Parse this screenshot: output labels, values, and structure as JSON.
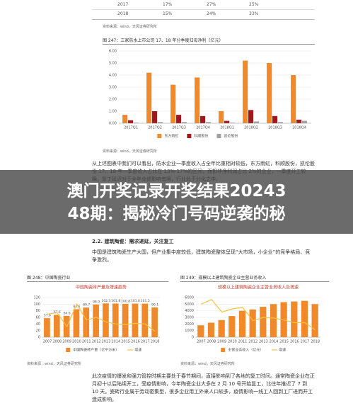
{
  "table": {
    "rows": [
      [
        "2017",
        "17%",
        "27%",
        "25%"
      ],
      [
        "2018",
        "15%",
        "24%",
        "33%"
      ]
    ],
    "source": "资料来源：wind，天风证券研究所"
  },
  "figure_247": {
    "label": "图 247：三家防水上市公司 17、18 年分季度归母净利（亿元）",
    "chart": {
      "type": "bar",
      "categories": [
        "2017Q1",
        "2017Q2",
        "2017Q3",
        "2017Q4",
        "2018Q1",
        "2018Q2",
        "2018Q3",
        "2018Q4"
      ],
      "series": [
        {
          "name": "东方雨虹",
          "color": "#f0892a",
          "values": [
            0.7,
            4.2,
            3.2,
            3.8,
            1.0,
            5.2,
            5.0,
            4.0
          ]
        },
        {
          "name": "科顺股份",
          "color": "#a3161d",
          "values": [
            0.25,
            1.0,
            0.7,
            0.6,
            0.2,
            1.1,
            0.6,
            0.3
          ]
        },
        {
          "name": "凯伦股份",
          "color": "#a0a0a8",
          "values": [
            0.05,
            0.1,
            0.1,
            0.1,
            0.05,
            0.15,
            0.1,
            0.2
          ]
        }
      ],
      "ylim": [
        0,
        6
      ],
      "yticks": [
        {
          "value": 0,
          "label": "0.00"
        },
        {
          "value": 1,
          "label": "1.00"
        },
        {
          "value": 2,
          "label": "2.00"
        },
        {
          "value": 3,
          "label": "3.00"
        },
        {
          "value": 4,
          "label": "4.00"
        },
        {
          "value": 5,
          "label": "5.00"
        },
        {
          "value": 6,
          "label": "6.00"
        }
      ]
    },
    "source": "资料来源：wind，天风证券研究所"
  },
  "paragraph_1": "从上述图表中我们可以看出，防水企业一季度收入占全年比重相对较低，东方雨虹，科顺股份，凯伦股份 17、18 年一季度收入占比在 13%-17%的区间，而扣非净利润占比 2%的企业，一季度开工较晚，复工延迟对于全年业绩影响有限，行业处于分化之中。",
  "banner": [
    "澳门开奖记录开奖结果20243",
    "48期：揭秘冷门号码逆袭的秘"
  ],
  "section_heading": "2.2. 建筑陶瓷：需求递延，关注复工",
  "paragraph_2": "中国是建筑陶瓷生产大国，但产业集中度较低，建筑陶瓷整体呈现“大市场，小企业”的竞争格局、竞争激烈。",
  "figure_248": {
    "label": "图 248：中国陶瓷行业",
    "chart": {
      "type": "bar",
      "title": "中国陶瓷砖产量及增速趋势",
      "data_labels": true,
      "categories": [
        "2007",
        "2008",
        "2009",
        "2010",
        "2011",
        "2012",
        "2013",
        "2014",
        "2015",
        "2016",
        "2017",
        "2018"
      ],
      "series": [
        {
          "name": "中国陶瓷砖产量（亿平方米）",
          "color": "#f0892a",
          "values": [
            57.6,
            67.6,
            64.6,
            84.6,
            89.7,
            98.9,
            102.3,
            101.8,
            100.8,
            101.6,
            101.5,
            90.1
          ]
        },
        {
          "name": "增速",
          "color": "#f5c242",
          "type": "line",
          "axis": "y2",
          "values": [
            15,
            17,
            -4,
            30,
            6,
            10,
            3,
            0,
            -1,
            1,
            0,
            -11
          ]
        }
      ],
      "ylim": [
        0,
        120
      ],
      "yticks": [
        0,
        20,
        40,
        60,
        80,
        100,
        120
      ],
      "y2lim": [
        -20,
        40
      ]
    },
    "source": "资料来源：wind，天风证券研究所"
  },
  "figure_249": {
    "label": "图 249：规模以上建筑陶瓷企业主营业务收入",
    "chart": {
      "type": "bar",
      "title": "规模以上建筑陶瓷企业主营业务收入及增速",
      "categories": [
        "2007",
        "2008",
        "2009",
        "2010",
        "2011",
        "2012",
        "2013",
        "2014",
        "2015",
        "2016",
        "2017",
        "2018"
      ],
      "series": [
        {
          "name": "主营业务收入（亿元）",
          "color": "#f0892a",
          "values": [
            1800,
            2200,
            2600,
            3200,
            4000,
            4200,
            4600,
            5000,
            5300,
            5400,
            5500,
            5000
          ]
        },
        {
          "name": "增速",
          "color": "#f5c242",
          "type": "line",
          "axis": "y2",
          "values": [
            30,
            37,
            18,
            23,
            25,
            5,
            10,
            9,
            6,
            2,
            2,
            -9
          ]
        }
      ],
      "ylim": [
        0,
        6000
      ],
      "yticks": [
        0,
        1000,
        2000,
        3000,
        4000,
        5000,
        6000
      ],
      "y2lim": [
        -20,
        40
      ]
    },
    "source": "资料来源：wind，天风证券研究所"
  },
  "paragraph_3": "此次疫情的爆发和强力管控时期主要处于春节期间，直接影响到了各地的复工时间。通常陶瓷企业在正月初十以后陆续开工，受疫情影响，今年陶瓷企业大多在 2 月 10 号开始复工，比往年推迟了 7 到 10 天。瓷砖行业属于劳动密集型，很多企业用工外来人口较多，疫情影响一线工人回到工厂进而开工造成影响。"
}
